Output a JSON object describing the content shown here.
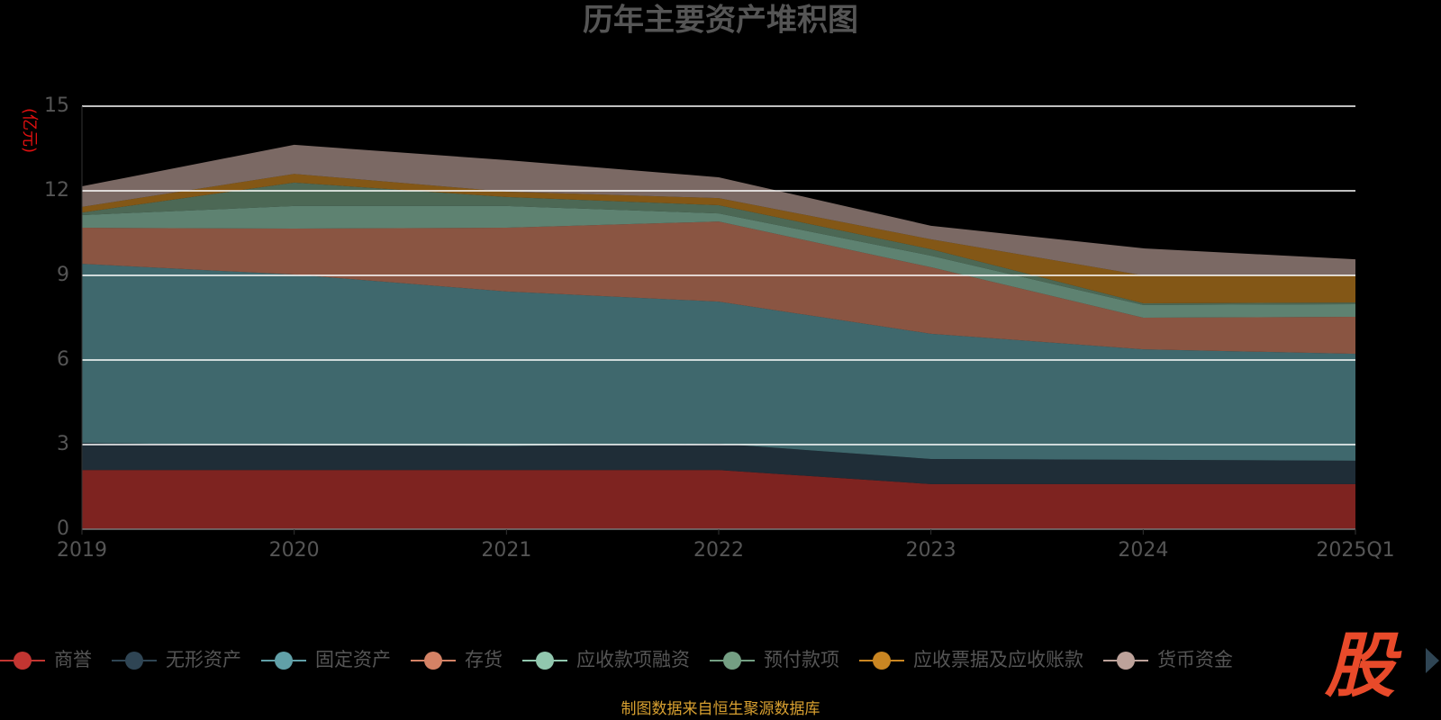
{
  "chart_data": {
    "type": "stacked-area",
    "title": "历年主要资产堆积图",
    "y_label": "(亿元)",
    "categories": [
      "2019",
      "2020",
      "2021",
      "2022",
      "2023",
      "2024",
      "2025Q1"
    ],
    "series": [
      {
        "name": "商誉",
        "color": "#c23531",
        "values": [
          2.1,
          2.1,
          2.1,
          2.1,
          1.6,
          1.6,
          1.6
        ]
      },
      {
        "name": "无形资产",
        "color": "#2f4554",
        "values": [
          0.96,
          0.87,
          0.85,
          0.93,
          0.89,
          0.86,
          0.83
        ]
      },
      {
        "name": "固定资产",
        "color": "#61a0a8",
        "values": [
          6.35,
          6.06,
          5.48,
          5.04,
          4.44,
          3.92,
          3.79
        ]
      },
      {
        "name": "存货",
        "color": "#d48265",
        "values": [
          1.28,
          1.63,
          2.26,
          2.84,
          2.36,
          1.12,
          1.31
        ]
      },
      {
        "name": "应收款项融资",
        "color": "#91c7ae",
        "values": [
          0.45,
          0.8,
          0.77,
          0.29,
          0.41,
          0.45,
          0.45
        ]
      },
      {
        "name": "预付款项",
        "color": "#749f83",
        "values": [
          0.09,
          0.83,
          0.32,
          0.29,
          0.23,
          0.06,
          0.06
        ]
      },
      {
        "name": "应收票据及应收账款",
        "color": "#ca8622",
        "values": [
          0.2,
          0.31,
          0.19,
          0.25,
          0.35,
          0.99,
          0.96
        ]
      },
      {
        "name": "货币资金",
        "color": "#bda29a",
        "values": [
          0.73,
          1.03,
          1.12,
          0.74,
          0.48,
          0.96,
          0.57
        ]
      }
    ],
    "ylim": [
      0,
      15
    ],
    "yticks": [
      0,
      3,
      6,
      9,
      12,
      15
    ],
    "grid": true,
    "source": "制图数据来自恒生聚源数据库",
    "logo": "股"
  }
}
